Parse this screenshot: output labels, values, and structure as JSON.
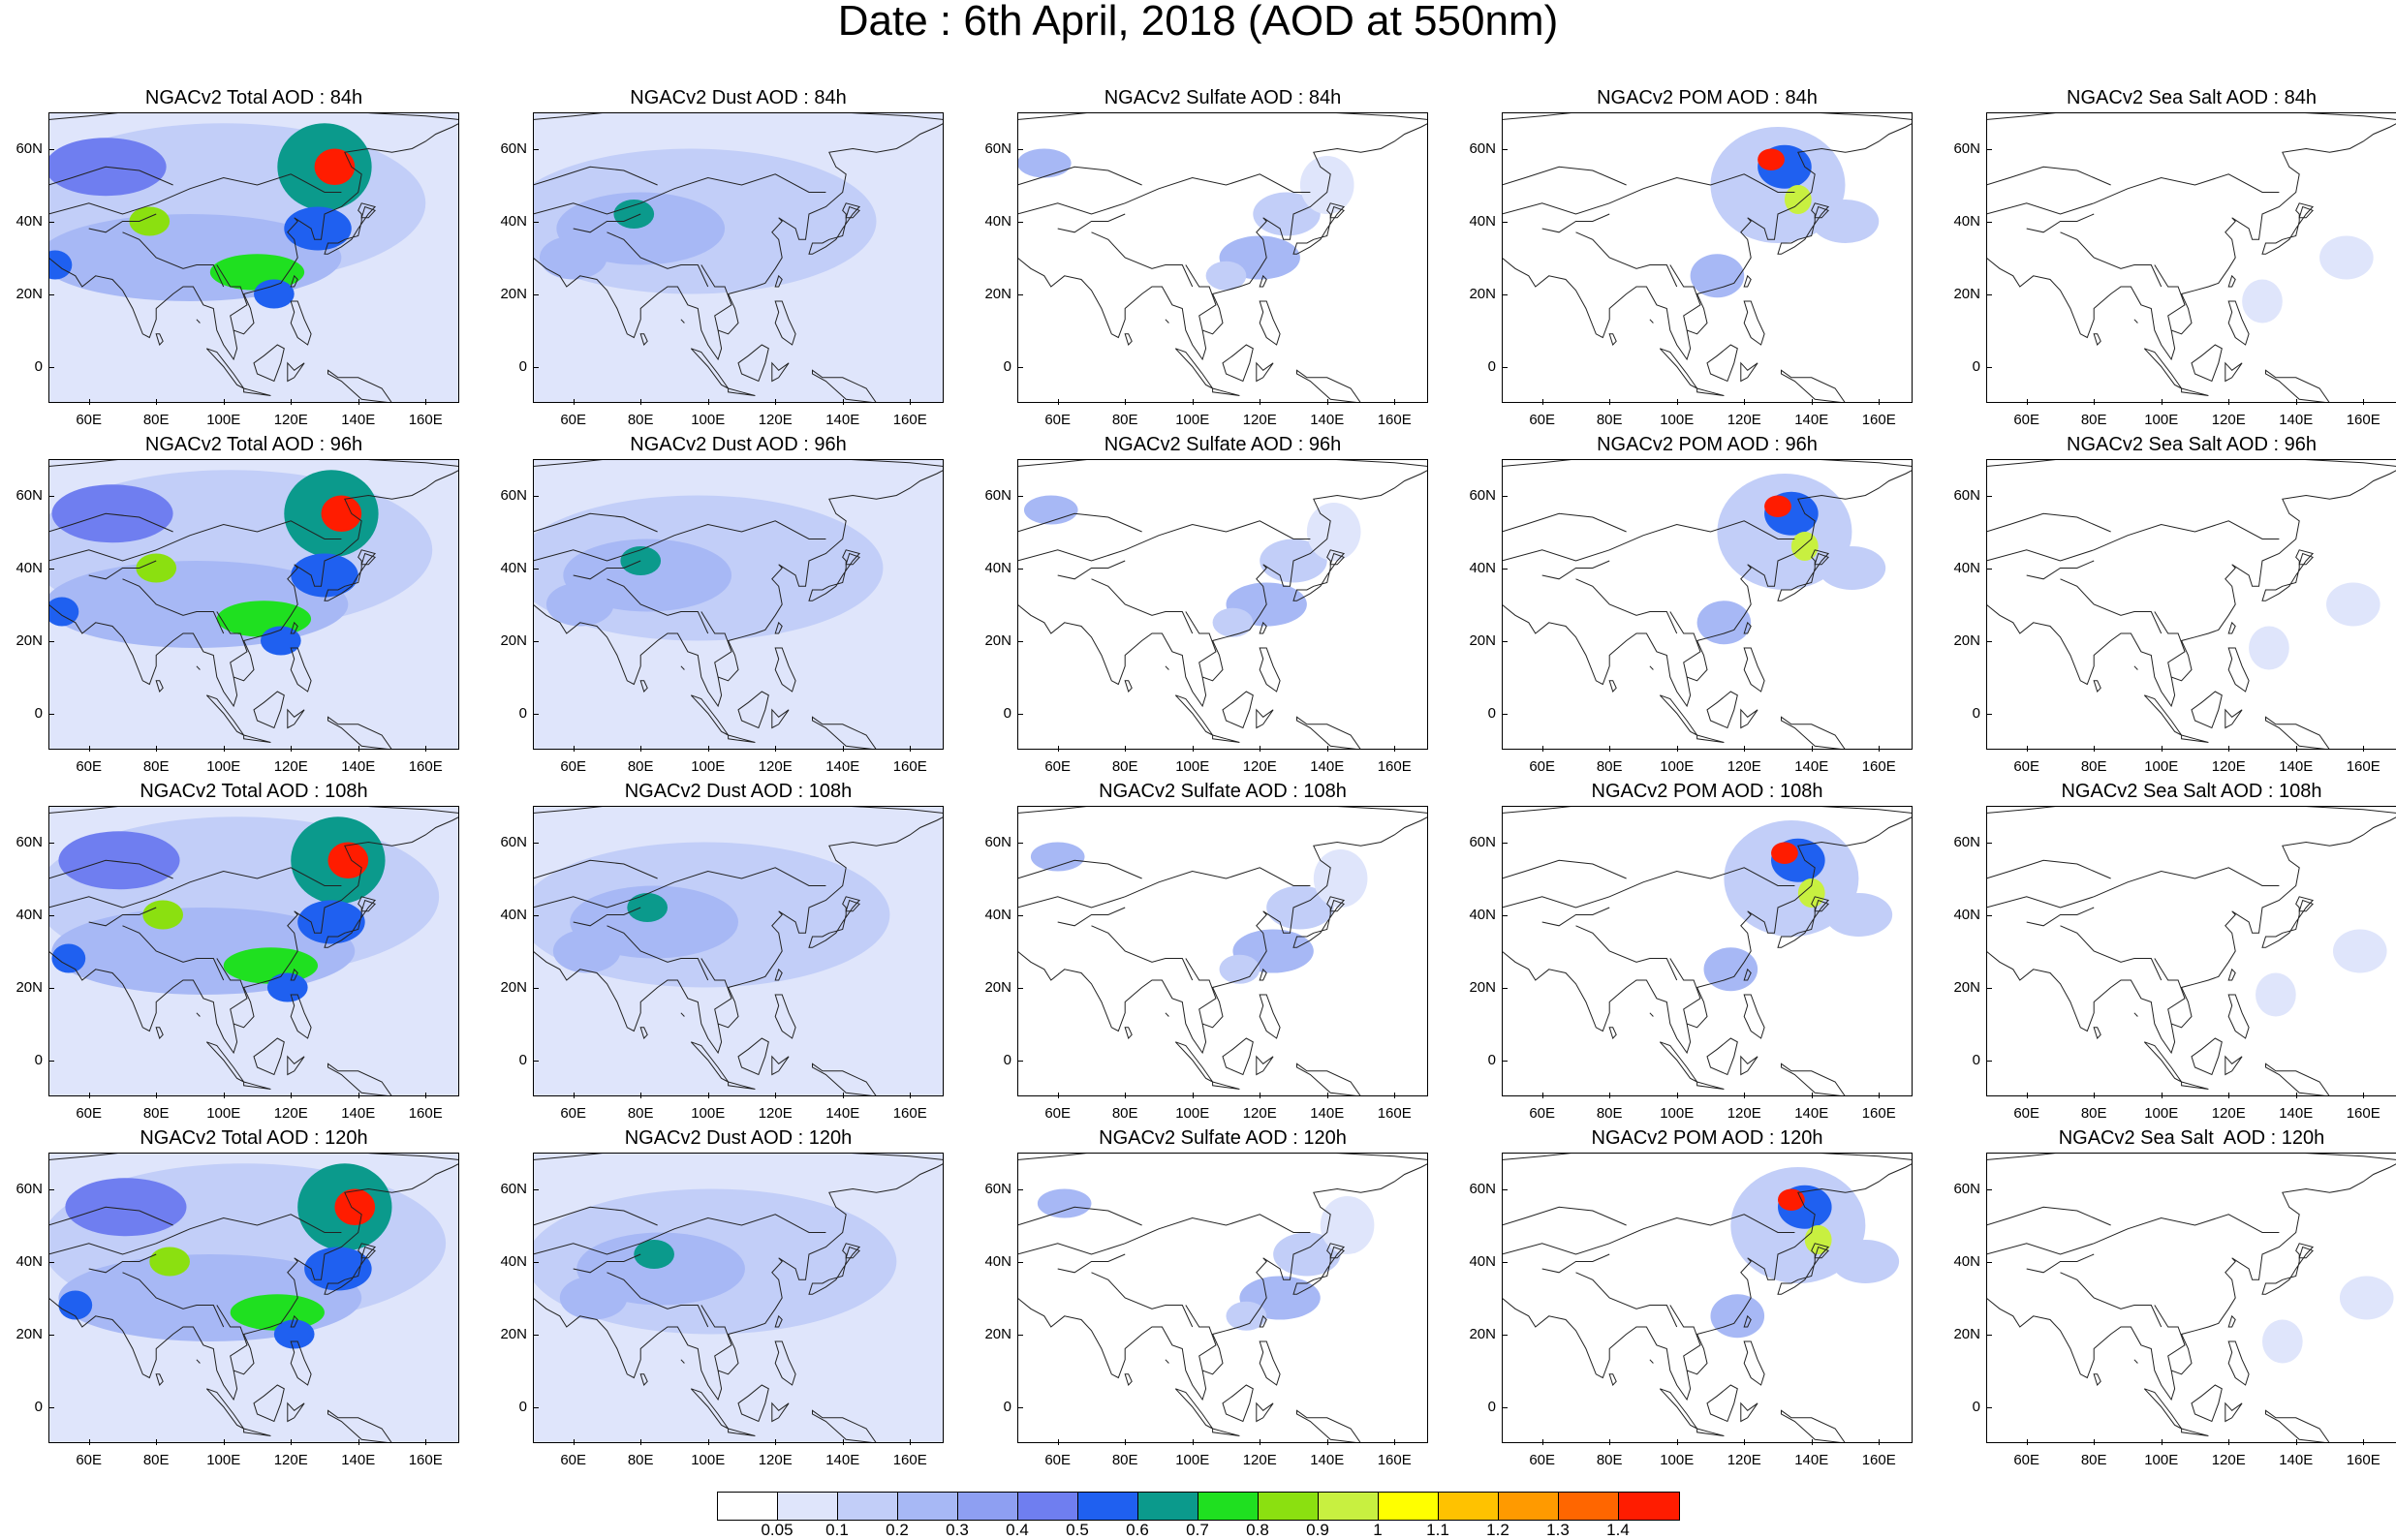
{
  "title": "Date : 6th April, 2018 (AOD at 550nm)",
  "lat_labels": [
    "60N",
    "40N",
    "20N",
    "0"
  ],
  "lon_labels": [
    "60E",
    "80E",
    "100E",
    "120E",
    "140E",
    "160E"
  ],
  "panels": [
    [
      "NGACv2 Total AOD : 84h",
      "NGACv2 Dust AOD : 84h",
      "NGACv2 Sulfate AOD : 84h",
      "NGACv2 POM AOD : 84h",
      "NGACv2 Sea Salt AOD : 84h"
    ],
    [
      "NGACv2 Total AOD : 96h",
      "NGACv2 Dust AOD : 96h",
      "NGACv2 Sulfate AOD : 96h",
      "NGACv2 POM AOD : 96h",
      "NGACv2 Sea Salt AOD : 96h"
    ],
    [
      "NGACv2 Total AOD : 108h",
      "NGACv2 Dust AOD : 108h",
      "NGACv2 Sulfate AOD : 108h",
      "NGACv2 POM AOD : 108h",
      "NGACv2 Sea Salt AOD : 108h"
    ],
    [
      "NGACv2 Total AOD : 120h",
      "NGACv2 Dust AOD : 120h",
      "NGACv2 Sulfate AOD : 120h",
      "NGACv2 POM AOD : 120h",
      "NGACv2 Sea Salt  AOD : 120h"
    ]
  ],
  "colorbar": {
    "labels": [
      "0.05",
      "0.1",
      "0.2",
      "0.3",
      "0.4",
      "0.5",
      "0.6",
      "0.7",
      "0.8",
      "0.9",
      "1",
      "1.1",
      "1.2",
      "1.3",
      "1.4"
    ],
    "colors": [
      "#ffffff",
      "#dfe5fb",
      "#c2cef8",
      "#a7b8f5",
      "#8e9ff2",
      "#6f7ef0",
      "#1f60f0",
      "#0b9a8c",
      "#1fe020",
      "#8be010",
      "#c8f040",
      "#ffff00",
      "#ffc200",
      "#ff9a00",
      "#ff6600",
      "#ff1c00"
    ]
  }
}
